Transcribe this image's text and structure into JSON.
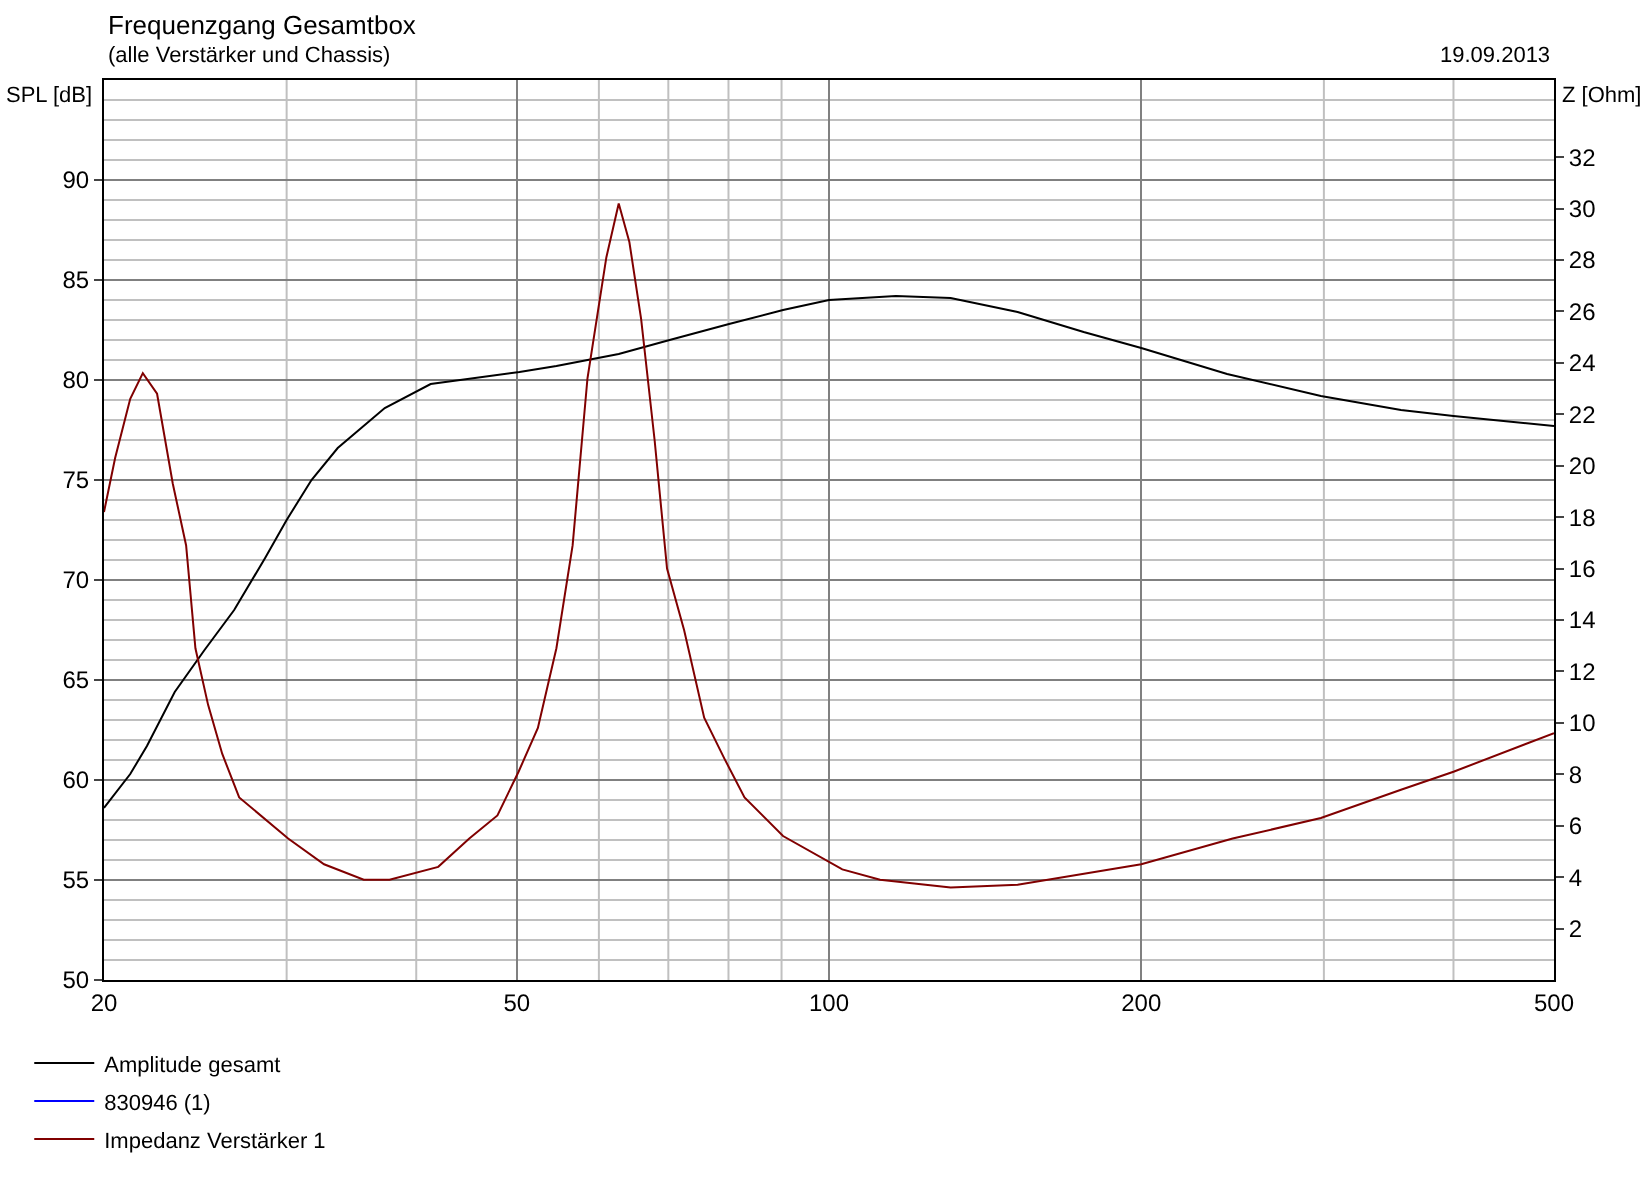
{
  "chart_data": {
    "type": "line",
    "title": "Frequenzgang Gesamtbox",
    "subtitle": "(alle Verstärker und Chassis)",
    "annotations": [
      "19.09.2013"
    ],
    "ylabel": "SPL [dB]",
    "y2label": "Z [Ohm]",
    "log": "x",
    "grid": true,
    "legend": "bottom left",
    "line_style": "solid",
    "marker": "none",
    "xlim": [
      20,
      500
    ],
    "xticks": [
      20,
      50,
      100,
      200,
      500
    ],
    "ylim": [
      50,
      95
    ],
    "yticks": [
      50,
      55,
      60,
      65,
      70,
      75,
      80,
      85,
      90
    ],
    "y2lim": [
      0,
      35
    ],
    "y2ticks": [
      2,
      4,
      6,
      8,
      10,
      12,
      14,
      16,
      18,
      20,
      22,
      24,
      26,
      28,
      30,
      32
    ],
    "series": [
      {
        "name": "Amplitude gesamt",
        "color": "#000000",
        "x": [
          20,
          21.2,
          22.0,
          23.4,
          25.0,
          26.7,
          28.6,
          30,
          31.7,
          33.6,
          37.3,
          41.3,
          50.3,
          54.6,
          62.7,
          70.2,
          80.1,
          90.3,
          100,
          116,
          131,
          152,
          176,
          200,
          242,
          298,
          356,
          400,
          500
        ],
        "values": [
          58.6,
          60.3,
          61.7,
          64.4,
          66.5,
          68.5,
          71.1,
          73.0,
          75.0,
          76.6,
          78.6,
          79.8,
          80.4,
          80.7,
          81.3,
          82.0,
          82.8,
          83.5,
          84.0,
          84.2,
          84.1,
          83.4,
          82.4,
          81.6,
          80.3,
          79.2,
          78.5,
          78.2,
          77.7
        ]
      },
      {
        "name": "830946 (1)",
        "color": "#0000ff"
      },
      {
        "name": "Impedanz Verstärker 1",
        "color": "#800000",
        "axis": "y2",
        "x": [
          20,
          20.5,
          21.2,
          21.8,
          22.5,
          23.3,
          24.0,
          24.5,
          25.2,
          26.0,
          27.0,
          30.1,
          32.6,
          35.6,
          37.7,
          42.0,
          45.0,
          47.9,
          50.2,
          52.4,
          54.6,
          56.6,
          58.5,
          61.0,
          62.7,
          64.2,
          65.9,
          67.9,
          69.8,
          72.5,
          75.8,
          79.3,
          82.9,
          90.3,
          103,
          112,
          131,
          152,
          200,
          245,
          298,
          356,
          400,
          500
        ],
        "values": [
          18.2,
          20.3,
          22.6,
          23.6,
          22.8,
          19.3,
          16.9,
          12.9,
          10.7,
          8.8,
          7.1,
          5.5,
          4.5,
          3.9,
          3.9,
          4.4,
          5.5,
          6.4,
          8.1,
          9.8,
          12.9,
          16.9,
          23.4,
          28.1,
          30.2,
          28.7,
          25.7,
          21.0,
          16.0,
          13.6,
          10.2,
          8.6,
          7.1,
          5.6,
          4.3,
          3.9,
          3.6,
          3.7,
          4.5,
          5.5,
          6.3,
          7.4,
          8.1,
          9.6
        ]
      }
    ]
  }
}
